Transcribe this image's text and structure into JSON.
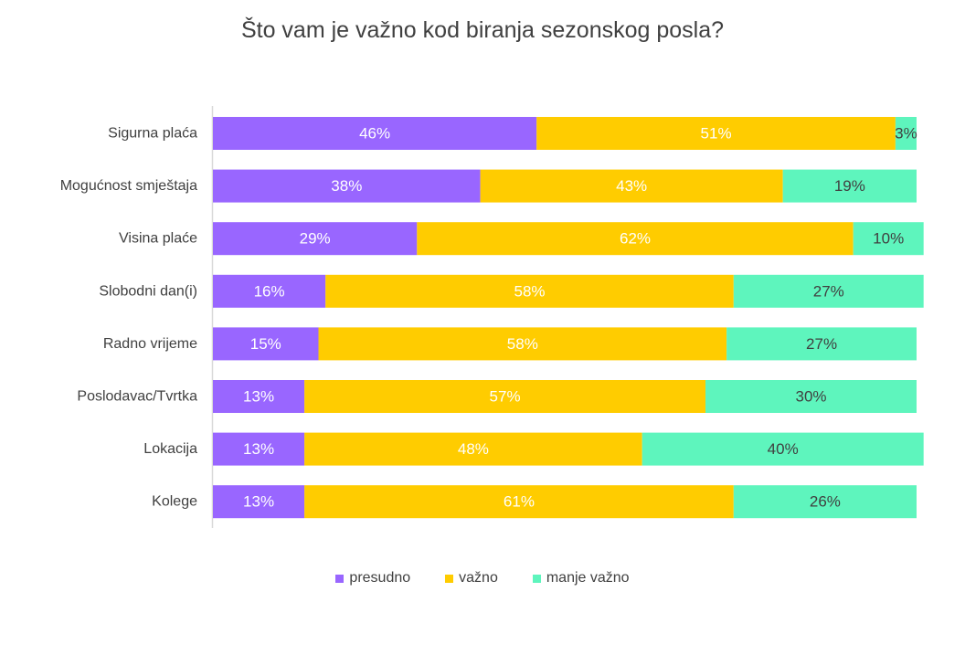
{
  "chart_data": {
    "type": "bar",
    "orientation": "horizontal",
    "stacked": true,
    "title": "Što vam je važno kod biranja sezonskog posla?",
    "categories": [
      "Sigurna plaća",
      "Mogućnost smještaja",
      "Visina plaće",
      "Slobodni dan(i)",
      "Radno vrijeme",
      "Poslodavac/Tvrtka",
      "Lokacija",
      "Kolege"
    ],
    "series": [
      {
        "name": "presudno",
        "color": "#9966FF",
        "label_color": "#FFFFFF",
        "values": [
          46,
          38,
          29,
          16,
          15,
          13,
          13,
          13
        ]
      },
      {
        "name": "važno",
        "color": "#FFCC00",
        "label_color": "#FFFFFF",
        "values": [
          51,
          43,
          62,
          58,
          58,
          57,
          48,
          61
        ]
      },
      {
        "name": "manje važno",
        "color": "#5EF5BD",
        "label_color": "#404040",
        "values": [
          3,
          19,
          10,
          27,
          27,
          30,
          40,
          26
        ]
      }
    ],
    "value_suffix": "%",
    "xlim": [
      0,
      100
    ],
    "grid": false,
    "legend_position": "bottom"
  }
}
